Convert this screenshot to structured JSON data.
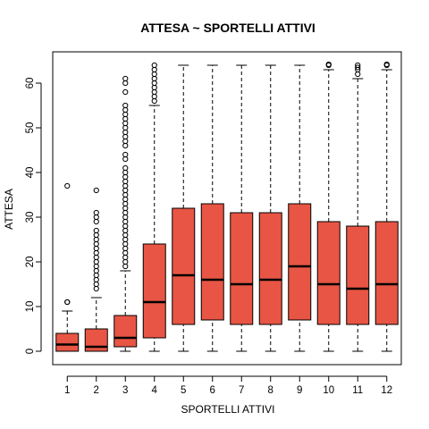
{
  "chart_data": {
    "type": "boxplot",
    "title": "ATTESA ~ SPORTELLI ATTIVI",
    "xlabel": "SPORTELLI ATTIVI",
    "ylabel": "ATTESA",
    "ylim": [
      -3,
      67
    ],
    "yticks": [
      0,
      10,
      20,
      30,
      40,
      50,
      60
    ],
    "box_color": "#E85544",
    "categories": [
      "1",
      "2",
      "3",
      "4",
      "5",
      "6",
      "7",
      "8",
      "9",
      "10",
      "11",
      "12"
    ],
    "boxes": [
      {
        "category": "1",
        "min": 0,
        "q1": 0,
        "median": 1.5,
        "q3": 4,
        "max": 9,
        "outliers": [
          11,
          11,
          37
        ]
      },
      {
        "category": "2",
        "min": 0,
        "q1": 0,
        "median": 1,
        "q3": 5,
        "max": 12,
        "outliers": [
          14,
          15,
          16,
          17,
          18,
          19,
          20,
          21,
          22,
          23,
          24,
          25,
          26,
          27,
          29,
          30,
          31,
          36
        ]
      },
      {
        "category": "3",
        "min": 0,
        "q1": 1,
        "median": 3,
        "q3": 8,
        "max": 18,
        "outliers": [
          19,
          20,
          21,
          22,
          23,
          24,
          25,
          26,
          27,
          28,
          29,
          30,
          31,
          32,
          33,
          34,
          35,
          36,
          37,
          38,
          39,
          40,
          41,
          43,
          44,
          46,
          47,
          48,
          49,
          50,
          51,
          52,
          53,
          54,
          55,
          58,
          60,
          61
        ]
      },
      {
        "category": "4",
        "min": 0,
        "q1": 3,
        "median": 11,
        "q3": 24,
        "max": 55,
        "outliers": [
          56,
          57,
          58,
          59,
          60,
          61,
          62,
          63,
          64
        ]
      },
      {
        "category": "5",
        "min": 0,
        "q1": 6,
        "median": 17,
        "q3": 32,
        "max": 64,
        "outliers": []
      },
      {
        "category": "6",
        "min": 0,
        "q1": 7,
        "median": 16,
        "q3": 33,
        "max": 64,
        "outliers": []
      },
      {
        "category": "7",
        "min": 0,
        "q1": 6,
        "median": 15,
        "q3": 31,
        "max": 64,
        "outliers": []
      },
      {
        "category": "8",
        "min": 0,
        "q1": 6,
        "median": 16,
        "q3": 31,
        "max": 64,
        "outliers": []
      },
      {
        "category": "9",
        "min": 0,
        "q1": 7,
        "median": 19,
        "q3": 33,
        "max": 64,
        "outliers": []
      },
      {
        "category": "10",
        "min": 0,
        "q1": 6,
        "median": 15,
        "q3": 29,
        "max": 63,
        "outliers": [
          64,
          64.2
        ]
      },
      {
        "category": "11",
        "min": 0,
        "q1": 6,
        "median": 14,
        "q3": 28,
        "max": 61,
        "outliers": [
          62,
          63,
          63.5,
          64
        ]
      },
      {
        "category": "12",
        "min": 0,
        "q1": 6,
        "median": 15,
        "q3": 29,
        "max": 63,
        "outliers": [
          64,
          64.2
        ]
      }
    ]
  }
}
